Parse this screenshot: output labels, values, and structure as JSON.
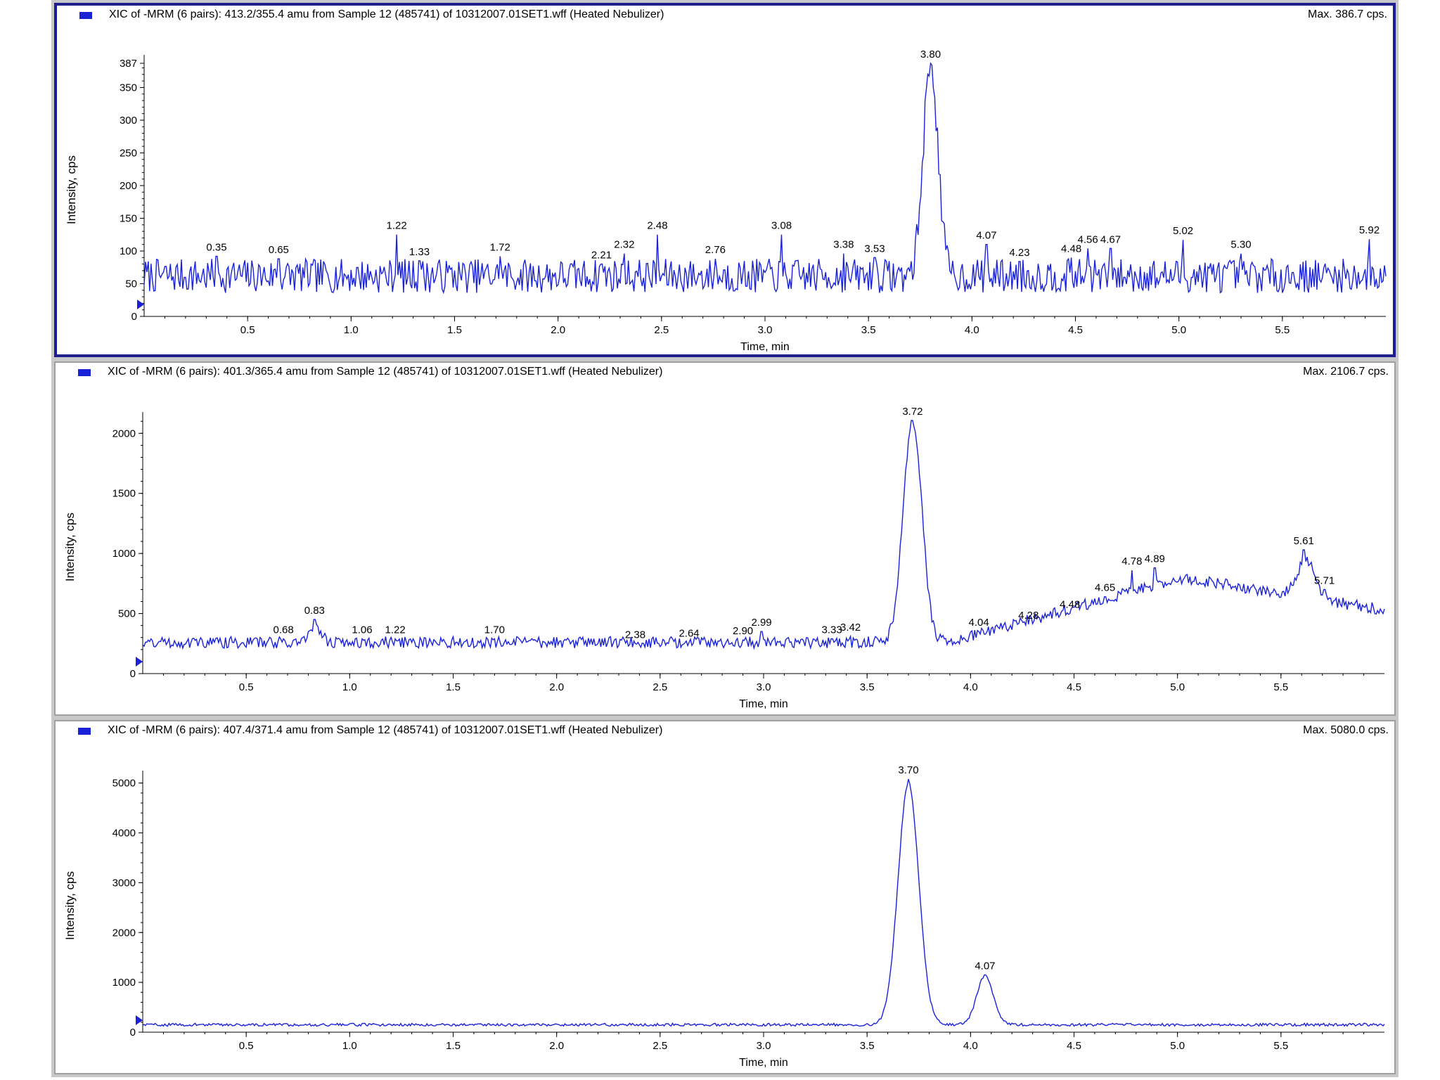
{
  "chart_data": [
    {
      "type": "line",
      "title": "XIC of -MRM (6 pairs): 413.2/355.4 amu from Sample 12 (485741) of 10312007.01SET1.wff (Heated Nebulizer)",
      "max_label": "Max. 386.7 cps.",
      "xlabel": "Time, min",
      "ylabel": "Intensity, cps",
      "xlim": [
        0,
        6.0
      ],
      "ylim": [
        0,
        387
      ],
      "xticks": [
        0.5,
        1.0,
        1.5,
        2.0,
        2.5,
        3.0,
        3.5,
        4.0,
        4.5,
        5.0,
        5.5
      ],
      "xtick_labels": [
        "0.5",
        "1.0",
        "1.5",
        "2.0",
        "2.5",
        "3.0",
        "3.5",
        "4.0",
        "4.5",
        "5.0",
        "5.5"
      ],
      "yticks": [
        0,
        50,
        100,
        150,
        200,
        250,
        300,
        350,
        387
      ],
      "ytick_labels": [
        "0",
        "50",
        "100",
        "150",
        "200",
        "250",
        "300",
        "350",
        "387"
      ],
      "color": "#1a22d8",
      "peak_labels": [
        {
          "x": 0.35,
          "y": 92,
          "label": "0.35"
        },
        {
          "x": 0.65,
          "y": 88,
          "label": "0.65"
        },
        {
          "x": 1.22,
          "y": 125,
          "label": "1.22"
        },
        {
          "x": 1.33,
          "y": 85,
          "label": "1.33"
        },
        {
          "x": 1.72,
          "y": 92,
          "label": "1.72"
        },
        {
          "x": 2.21,
          "y": 80,
          "label": "2.21"
        },
        {
          "x": 2.32,
          "y": 96,
          "label": "2.32"
        },
        {
          "x": 2.48,
          "y": 125,
          "label": "2.48"
        },
        {
          "x": 2.76,
          "y": 88,
          "label": "2.76"
        },
        {
          "x": 3.08,
          "y": 125,
          "label": "3.08"
        },
        {
          "x": 3.38,
          "y": 96,
          "label": "3.38"
        },
        {
          "x": 3.53,
          "y": 90,
          "label": "3.53"
        },
        {
          "x": 3.8,
          "y": 387,
          "label": "3.80"
        },
        {
          "x": 4.07,
          "y": 110,
          "label": "4.07"
        },
        {
          "x": 4.23,
          "y": 84,
          "label": "4.23"
        },
        {
          "x": 4.48,
          "y": 90,
          "label": "4.48"
        },
        {
          "x": 4.56,
          "y": 104,
          "label": "4.56"
        },
        {
          "x": 4.67,
          "y": 104,
          "label": "4.67"
        },
        {
          "x": 5.02,
          "y": 117,
          "label": "5.02"
        },
        {
          "x": 5.3,
          "y": 96,
          "label": "5.30"
        },
        {
          "x": 5.92,
          "y": 118,
          "label": "5.92"
        }
      ]
    },
    {
      "type": "line",
      "title": "XIC of -MRM (6 pairs): 401.3/365.4 amu from Sample 12 (485741) of 10312007.01SET1.wff (Heated Nebulizer)",
      "max_label": "Max. 2106.7 cps.",
      "xlabel": "Time, min",
      "ylabel": "Intensity, cps",
      "xlim": [
        0,
        6.0
      ],
      "ylim": [
        0,
        2107
      ],
      "xticks": [
        0.5,
        1.0,
        1.5,
        2.0,
        2.5,
        3.0,
        3.5,
        4.0,
        4.5,
        5.0,
        5.5
      ],
      "xtick_labels": [
        "0.5",
        "1.0",
        "1.5",
        "2.0",
        "2.5",
        "3.0",
        "3.5",
        "4.0",
        "4.5",
        "5.0",
        "5.5"
      ],
      "yticks": [
        0,
        500,
        1000,
        1500,
        2000
      ],
      "ytick_labels": [
        "0",
        "500",
        "1000",
        "1500",
        "2000"
      ],
      "color": "#1a22d8",
      "peak_labels": [
        {
          "x": 0.68,
          "y": 290,
          "label": "0.68"
        },
        {
          "x": 0.83,
          "y": 450,
          "label": "0.83"
        },
        {
          "x": 1.06,
          "y": 290,
          "label": "1.06"
        },
        {
          "x": 1.22,
          "y": 290,
          "label": "1.22"
        },
        {
          "x": 1.7,
          "y": 290,
          "label": "1.70"
        },
        {
          "x": 2.38,
          "y": 250,
          "label": "2.38"
        },
        {
          "x": 2.64,
          "y": 260,
          "label": "2.64"
        },
        {
          "x": 2.9,
          "y": 280,
          "label": "2.90"
        },
        {
          "x": 2.99,
          "y": 350,
          "label": "2.99"
        },
        {
          "x": 3.33,
          "y": 290,
          "label": "3.33"
        },
        {
          "x": 3.42,
          "y": 310,
          "label": "3.42"
        },
        {
          "x": 3.72,
          "y": 2107,
          "label": "3.72"
        },
        {
          "x": 4.04,
          "y": 350,
          "label": "4.04"
        },
        {
          "x": 4.28,
          "y": 410,
          "label": "4.28"
        },
        {
          "x": 4.48,
          "y": 500,
          "label": "4.48"
        },
        {
          "x": 4.65,
          "y": 640,
          "label": "4.65"
        },
        {
          "x": 4.78,
          "y": 860,
          "label": "4.78"
        },
        {
          "x": 4.89,
          "y": 880,
          "label": "4.89"
        },
        {
          "x": 5.61,
          "y": 1030,
          "label": "5.61"
        },
        {
          "x": 5.71,
          "y": 700,
          "label": "5.71"
        }
      ]
    },
    {
      "type": "line",
      "title": "XIC of -MRM (6 pairs): 407.4/371.4 amu from Sample 12 (485741) of 10312007.01SET1.wff (Heated Nebulizer)",
      "max_label": "Max. 5080.0 cps.",
      "xlabel": "Time, min",
      "ylabel": "Intensity, cps",
      "xlim": [
        0,
        6.0
      ],
      "ylim": [
        0,
        5080
      ],
      "xticks": [
        0.5,
        1.0,
        1.5,
        2.0,
        2.5,
        3.0,
        3.5,
        4.0,
        4.5,
        5.0,
        5.5
      ],
      "xtick_labels": [
        "0.5",
        "1.0",
        "1.5",
        "2.0",
        "2.5",
        "3.0",
        "3.5",
        "4.0",
        "4.5",
        "5.0",
        "5.5"
      ],
      "yticks": [
        0,
        1000,
        2000,
        3000,
        4000,
        5000
      ],
      "ytick_labels": [
        "0",
        "1000",
        "2000",
        "3000",
        "4000",
        "5000"
      ],
      "color": "#1a22d8",
      "peak_labels": [
        {
          "x": 3.7,
          "y": 5080,
          "label": "3.70"
        },
        {
          "x": 4.07,
          "y": 1150,
          "label": "4.07"
        }
      ]
    }
  ]
}
